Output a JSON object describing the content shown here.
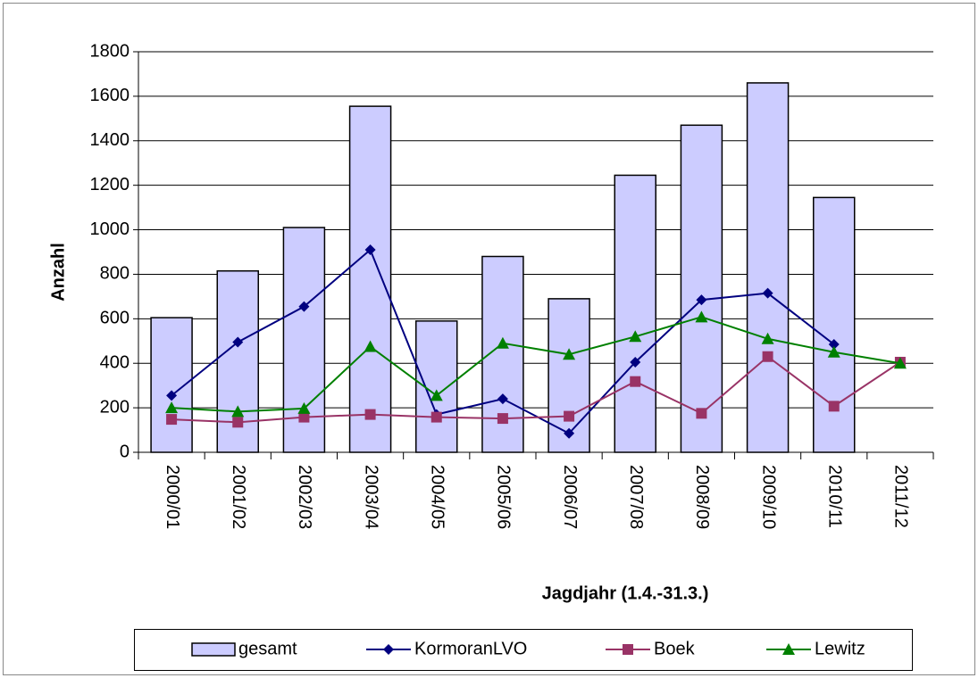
{
  "chart_data": {
    "type": "bar",
    "xlabel": "Jagdjahr (1.4.-31.3.)",
    "ylabel": "Anzahl",
    "categories": [
      "2000/01",
      "2001/02",
      "2002/03",
      "2003/04",
      "2004/05",
      "2005/06",
      "2006/07",
      "2007/08",
      "2008/09",
      "2009/10",
      "2010/11",
      "2011/12"
    ],
    "series": [
      {
        "name": "gesamt",
        "type": "bar",
        "color": "#ccccff",
        "values": [
          605,
          815,
          1010,
          1555,
          590,
          880,
          690,
          1245,
          1470,
          1660,
          1145,
          null
        ]
      },
      {
        "name": "KormoranLVO",
        "type": "line",
        "marker": "diamond",
        "color": "#000080",
        "values": [
          255,
          495,
          655,
          910,
          170,
          240,
          85,
          405,
          685,
          715,
          485,
          null
        ]
      },
      {
        "name": "Boek",
        "type": "line",
        "marker": "square",
        "color": "#993366",
        "values": [
          148,
          135,
          158,
          170,
          158,
          152,
          162,
          318,
          175,
          430,
          207,
          405
        ]
      },
      {
        "name": "Lewitz",
        "type": "line",
        "marker": "triangle",
        "color": "#008000",
        "values": [
          200,
          183,
          197,
          475,
          255,
          490,
          440,
          520,
          608,
          510,
          450,
          400
        ]
      }
    ],
    "ylim": [
      0,
      1800
    ],
    "yticks": [
      0,
      200,
      400,
      600,
      800,
      1000,
      1200,
      1400,
      1600,
      1800
    ],
    "grid": true
  }
}
